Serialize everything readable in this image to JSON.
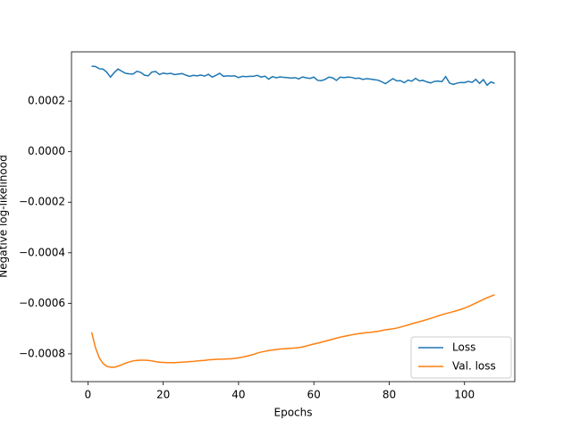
{
  "chart_data": {
    "type": "line",
    "xlabel": "Epochs",
    "ylabel": "Negative log-likelihood",
    "x": [
      1,
      2,
      3,
      4,
      5,
      6,
      7,
      8,
      9,
      10,
      11,
      12,
      13,
      14,
      15,
      16,
      17,
      18,
      19,
      20,
      21,
      22,
      23,
      24,
      25,
      26,
      27,
      28,
      29,
      30,
      31,
      32,
      33,
      34,
      35,
      36,
      37,
      38,
      39,
      40,
      41,
      42,
      43,
      44,
      45,
      46,
      47,
      48,
      49,
      50,
      51,
      52,
      53,
      54,
      55,
      56,
      57,
      58,
      59,
      60,
      61,
      62,
      63,
      64,
      65,
      66,
      67,
      68,
      69,
      70,
      71,
      72,
      73,
      74,
      75,
      76,
      77,
      78,
      79,
      80,
      81,
      82,
      83,
      84,
      85,
      86,
      87,
      88,
      89,
      90,
      91,
      92,
      93,
      94,
      95,
      96,
      97,
      98,
      99,
      100,
      101,
      102,
      103,
      104,
      105,
      106,
      107,
      108
    ],
    "series": [
      {
        "name": "Loss",
        "color": "#1f77b4",
        "values": [
          0.000338,
          0.000337,
          0.000328,
          0.000327,
          0.000315,
          0.000295,
          0.000313,
          0.000327,
          0.000318,
          0.00031,
          0.000308,
          0.000307,
          0.000318,
          0.000314,
          0.000303,
          0.0003,
          0.000315,
          0.000317,
          0.000305,
          0.000311,
          0.000308,
          0.00031,
          0.000305,
          0.000307,
          0.000309,
          0.000303,
          0.000298,
          0.000302,
          0.0003,
          0.000303,
          0.000299,
          0.000306,
          0.000295,
          0.000302,
          0.00031,
          0.000298,
          0.0003,
          0.000299,
          0.0003,
          0.000293,
          0.000298,
          0.000297,
          0.000298,
          0.000298,
          0.000302,
          0.000295,
          0.000299,
          0.000287,
          0.000297,
          0.000292,
          0.000296,
          0.000294,
          0.000293,
          0.000291,
          0.000293,
          0.000288,
          0.000296,
          0.000292,
          0.00029,
          0.000295,
          0.000282,
          0.000281,
          0.000286,
          0.000295,
          0.000292,
          0.000282,
          0.000295,
          0.000293,
          0.000295,
          0.000294,
          0.00029,
          0.000291,
          0.000286,
          0.000289,
          0.000287,
          0.000285,
          0.000283,
          0.000277,
          0.000269,
          0.000279,
          0.000289,
          0.00028,
          0.000281,
          0.000273,
          0.000283,
          0.000279,
          0.00029,
          0.00028,
          0.000282,
          0.000276,
          0.000272,
          0.000278,
          0.000279,
          0.000277,
          0.000297,
          0.000272,
          0.000266,
          0.000271,
          0.000274,
          0.000273,
          0.000278,
          0.000274,
          0.000286,
          0.00027,
          0.000285,
          0.000263,
          0.000276,
          0.00027
        ]
      },
      {
        "name": "Val. loss",
        "color": "#ff7f0e",
        "values": [
          -0.000715,
          -0.000775,
          -0.000815,
          -0.000838,
          -0.000849,
          -0.000853,
          -0.000853,
          -0.000849,
          -0.000843,
          -0.000837,
          -0.000832,
          -0.000828,
          -0.000826,
          -0.000825,
          -0.000825,
          -0.000826,
          -0.000828,
          -0.000831,
          -0.000833,
          -0.000834,
          -0.000835,
          -0.000835,
          -0.000835,
          -0.000834,
          -0.000833,
          -0.000832,
          -0.000831,
          -0.00083,
          -0.000828,
          -0.000827,
          -0.000826,
          -0.000824,
          -0.000823,
          -0.000822,
          -0.000821,
          -0.000821,
          -0.00082,
          -0.00082,
          -0.000818,
          -0.000816,
          -0.000813,
          -0.00081,
          -0.000806,
          -0.000802,
          -0.000797,
          -0.000793,
          -0.00079,
          -0.000787,
          -0.000785,
          -0.000783,
          -0.000781,
          -0.00078,
          -0.000779,
          -0.000778,
          -0.000777,
          -0.000775,
          -0.000773,
          -0.000769,
          -0.000765,
          -0.000761,
          -0.000758,
          -0.000754,
          -0.00075,
          -0.000746,
          -0.000742,
          -0.000738,
          -0.000734,
          -0.000731,
          -0.000728,
          -0.000725,
          -0.000722,
          -0.00072,
          -0.000718,
          -0.000716,
          -0.000715,
          -0.000713,
          -0.000711,
          -0.000708,
          -0.000705,
          -0.000703,
          -0.000701,
          -0.000698,
          -0.000694,
          -0.00069,
          -0.000686,
          -0.000681,
          -0.000677,
          -0.000673,
          -0.000669,
          -0.000664,
          -0.00066,
          -0.000655,
          -0.00065,
          -0.000645,
          -0.000641,
          -0.000637,
          -0.000633,
          -0.000629,
          -0.000624,
          -0.000619,
          -0.000613,
          -0.000606,
          -0.000599,
          -0.000592,
          -0.000585,
          -0.000578,
          -0.000572,
          -0.000566
        ]
      }
    ],
    "xlim": [
      -4.35,
      113.35
    ],
    "xticks": [
      0,
      20,
      40,
      60,
      80,
      100
    ],
    "ylim": [
      -0.00091,
      0.000395
    ],
    "yticks": [
      {
        "value": -0.0008,
        "label": "−0.0008"
      },
      {
        "value": -0.0006,
        "label": "−0.0006"
      },
      {
        "value": -0.0004,
        "label": "−0.0004"
      },
      {
        "value": -0.0002,
        "label": "−0.0002"
      },
      {
        "value": 0,
        "label": "0.0000"
      },
      0.0002
    ],
    "grid": false,
    "legend": "lower right"
  }
}
